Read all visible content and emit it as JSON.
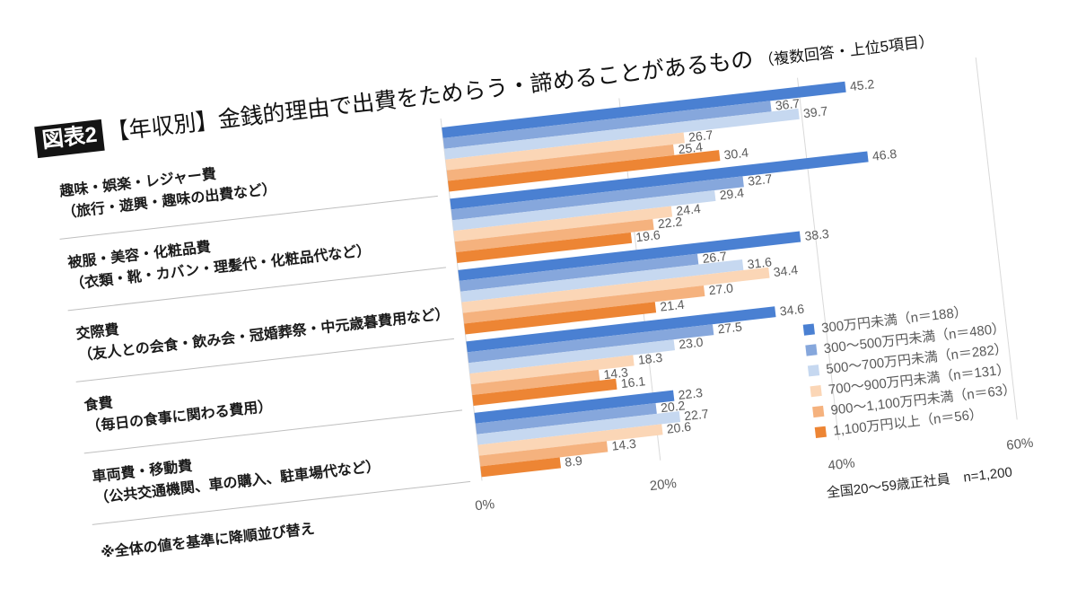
{
  "chart_data": {
    "type": "bar",
    "orientation": "horizontal",
    "figure_label": "図表2",
    "title": "【年収別】金銭的理由で出費をためらう・諦めることがあるもの",
    "subtitle": "（複数回答・上位5項目）",
    "categories": [
      "趣味・娯楽・レジャー費",
      "被服・美容・化粧品費",
      "交際費",
      "食費",
      "車両費・移動費"
    ],
    "category_details": [
      "（旅行・遊興・趣味の出費など）",
      "（衣類・靴・カバン・理髪代・化粧品代など）",
      "（友人との会食・飲み会・冠婚葬祭・中元歳暮費用など）",
      "（毎日の食事に関わる費用）",
      "（公共交通機関、車の購入、駐車場代など）"
    ],
    "series": [
      {
        "name": "300万円未満（n＝188）",
        "color": "#4a80d2",
        "values": [
          45.2,
          46.8,
          38.3,
          34.6,
          22.3
        ]
      },
      {
        "name": "300～500万円未満（n＝480）",
        "color": "#86a7dc",
        "values": [
          36.7,
          32.7,
          26.7,
          27.5,
          20.2
        ]
      },
      {
        "name": "500～700万円未満（n＝282）",
        "color": "#c6d8f0",
        "values": [
          39.7,
          29.4,
          31.6,
          23.0,
          22.7
        ]
      },
      {
        "name": "700～900万円未満（n＝131）",
        "color": "#fbd6b6",
        "values": [
          26.7,
          24.4,
          34.4,
          18.3,
          20.6
        ]
      },
      {
        "name": "900～1,100万円未満（n＝63）",
        "color": "#f5b27e",
        "values": [
          25.4,
          22.2,
          27.0,
          14.3,
          14.3
        ]
      },
      {
        "name": "1,100万円以上（n＝56）",
        "color": "#ed8534",
        "values": [
          30.4,
          19.6,
          21.4,
          16.1,
          8.9
        ]
      }
    ],
    "data_labels": true,
    "xlim": [
      0,
      60
    ],
    "x_ticks": [
      0,
      20,
      40,
      60
    ],
    "tick_labels": [
      "0%",
      "20%",
      "40%",
      "60%"
    ],
    "grid": true,
    "legend_position": "bottom-right",
    "note": "※全体の値を基準に降順並び替え",
    "sample_description": "全国20～59歳正社員　n=1,200"
  }
}
